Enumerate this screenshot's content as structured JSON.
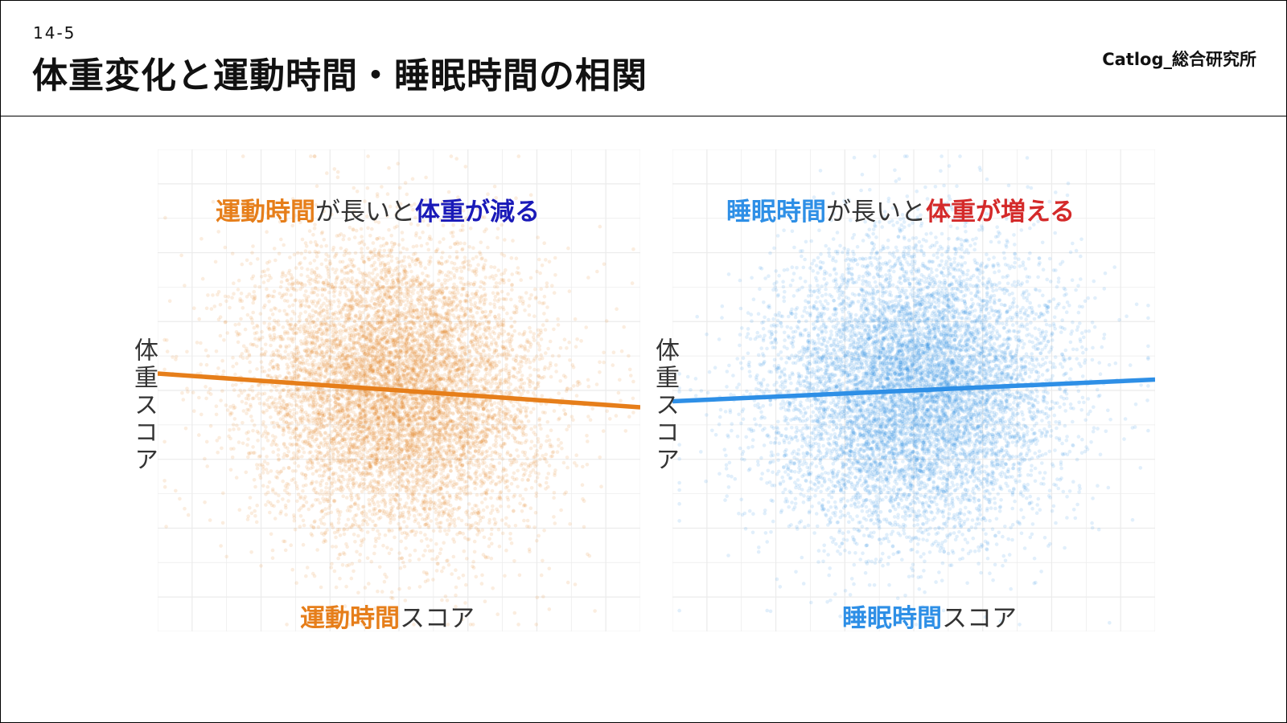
{
  "header": {
    "section": "14-5",
    "title": "体重変化と運動時間・睡眠時間の相関",
    "brand": "Catlog_総合研究所"
  },
  "colors": {
    "exercise": "#E67E1A",
    "sleep": "#2E8FE6",
    "decrease": "#1A1AB8",
    "increase": "#D42A2A",
    "grid": "#EBEBEB"
  },
  "chart_data": [
    {
      "type": "scatter",
      "title": "",
      "xlabel_highlight": "運動時間",
      "xlabel_rest": "スコア",
      "ylabel": "体重スコア",
      "annotation": {
        "subject": "運動時間",
        "middle": "が長いと",
        "effect": "体重が減る"
      },
      "xlim": [
        -3.5,
        3.5
      ],
      "ylim": [
        -3.5,
        3.5
      ],
      "grid": true,
      "point_color": "#E67E1A",
      "point_count": 9000,
      "trend": {
        "slope": -0.07,
        "intercept": 0.0,
        "x_range": [
          -3.5,
          3.5
        ]
      }
    },
    {
      "type": "scatter",
      "title": "",
      "xlabel_highlight": "睡眠時間",
      "xlabel_rest": "スコア",
      "ylabel": "体重スコア",
      "annotation": {
        "subject": "睡眠時間",
        "middle": "が長いと",
        "effect": "体重が増える"
      },
      "xlim": [
        -3.5,
        3.5
      ],
      "ylim": [
        -3.5,
        3.5
      ],
      "grid": true,
      "point_color": "#2E8FE6",
      "point_count": 9000,
      "trend": {
        "slope": 0.045,
        "intercept": 0.0,
        "x_range": [
          -3.5,
          3.5
        ]
      }
    }
  ]
}
